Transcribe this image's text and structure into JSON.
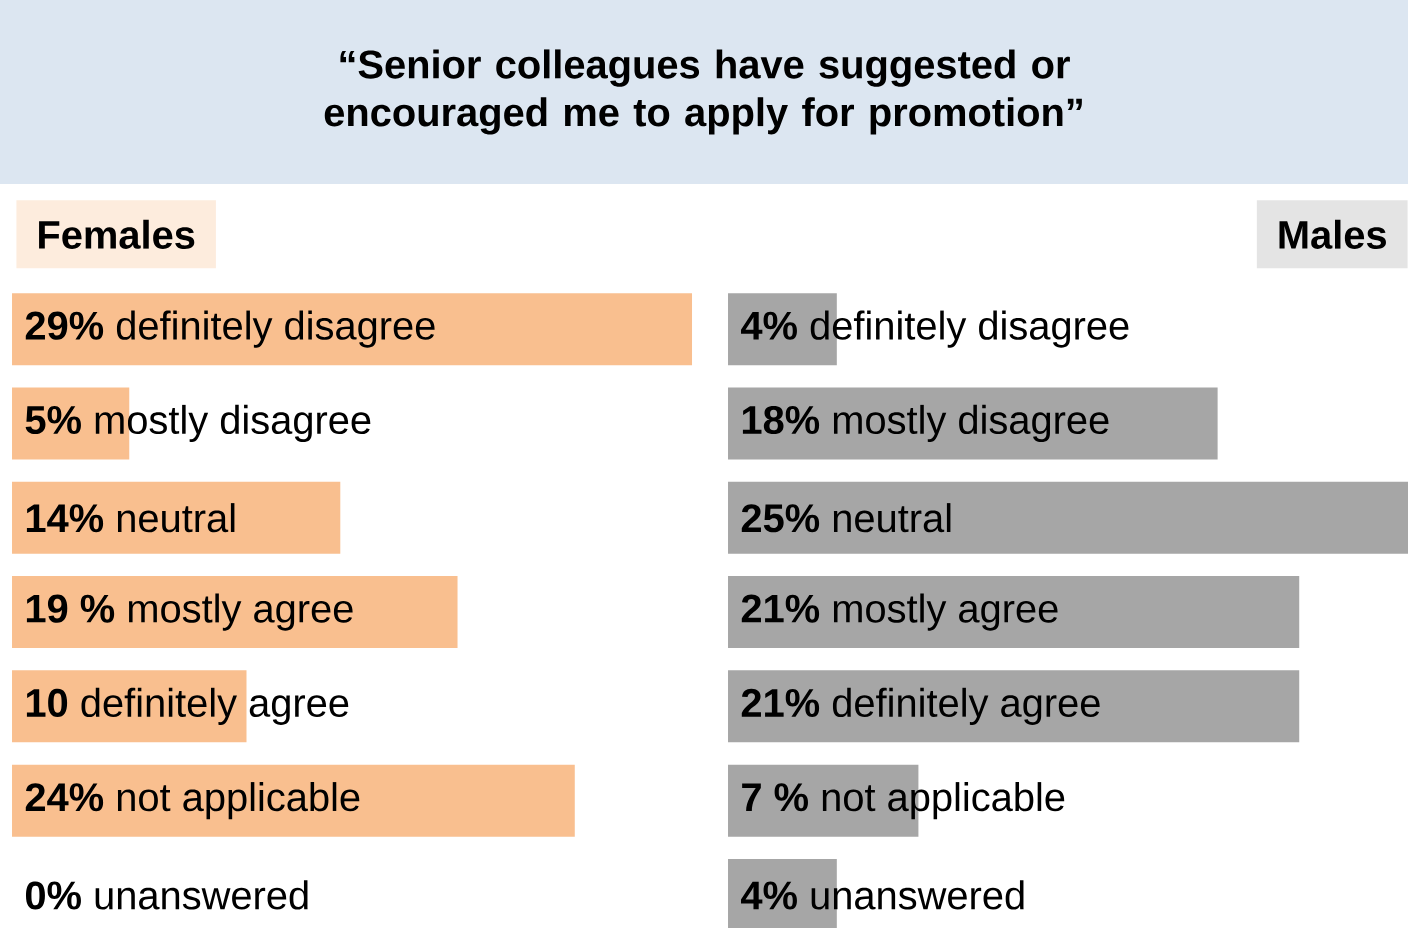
{
  "chart_data": [
    {
      "type": "bar",
      "orientation": "horizontal",
      "title": "“Senior colleagues have suggested or encouraged me to apply for promotion”",
      "legend": "top left",
      "categories": [
        "definitely disagree",
        "mostly disagree",
        "neutral",
        "mostly agree",
        "definitely agree",
        "not applicable",
        "unanswered"
      ],
      "series": [
        {
          "name": "Females",
          "color": "#f9bf8f",
          "values": [
            29,
            5,
            14,
            19,
            10,
            24,
            0
          ],
          "value_labels": [
            "29%",
            "5%",
            "14%",
            "19 %",
            "10",
            "24%",
            "0%"
          ]
        }
      ]
    },
    {
      "type": "bar",
      "orientation": "horizontal",
      "legend": "top right",
      "categories": [
        "definitely disagree",
        "mostly disagree",
        "neutral",
        "mostly agree",
        "definitely agree",
        "not applicable",
        "unanswered"
      ],
      "series": [
        {
          "name": "Males",
          "color": "#a6a6a6",
          "values": [
            4,
            18,
            25,
            21,
            21,
            7,
            4
          ],
          "value_labels": [
            "4%",
            "18%",
            "25%",
            "21%",
            "21%",
            "7 %",
            "4%"
          ]
        }
      ]
    }
  ]
}
